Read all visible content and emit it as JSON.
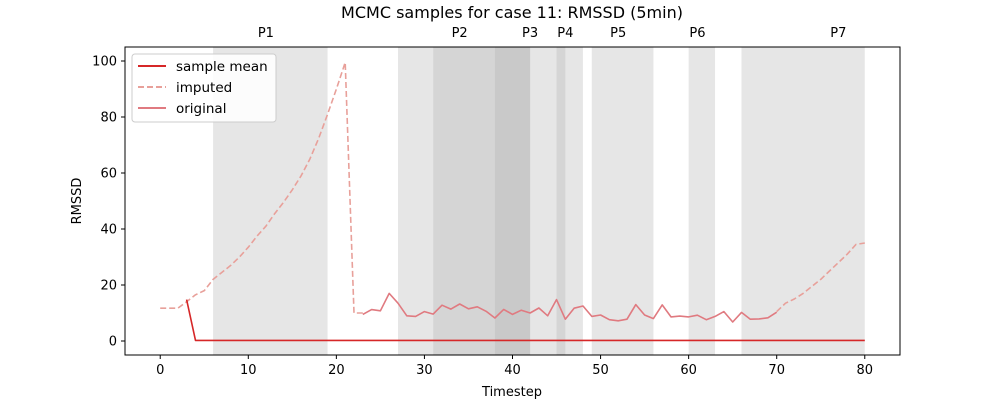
{
  "chart_data": {
    "type": "line",
    "title": "MCMC samples for case 11: RMSSD (5min)",
    "xlabel": "Timestep",
    "ylabel": "RMSSD",
    "xlim": [
      -4,
      84
    ],
    "ylim": [
      -5,
      105
    ],
    "xticks": [
      0,
      10,
      20,
      30,
      40,
      50,
      60,
      70,
      80
    ],
    "yticks": [
      0,
      20,
      40,
      60,
      80,
      100
    ],
    "legend": {
      "placement": "top-left"
    },
    "colors": {
      "sample_mean": "#d62728",
      "imputed": "#e8a09a",
      "original": "#e07a80",
      "band": "#b0b0b0"
    },
    "series": [
      {
        "name": "sample mean",
        "style": "solid",
        "x": [
          3,
          4,
          80
        ],
        "y": [
          14.8,
          0.2,
          0.2
        ]
      },
      {
        "name": "imputed",
        "style": "dashed",
        "x": [
          0,
          1,
          2,
          3,
          4,
          5,
          6,
          7,
          8,
          9,
          10,
          11,
          12,
          13,
          14,
          15,
          16,
          17,
          18,
          19,
          20,
          21,
          22,
          23
        ],
        "y": [
          11.7,
          11.7,
          11.7,
          14,
          16.5,
          18,
          22,
          24.5,
          27,
          30,
          33.5,
          37.5,
          41,
          45.5,
          49.5,
          54,
          59,
          65,
          72.5,
          81,
          90,
          99.5,
          10,
          10
        ]
      },
      {
        "name": "imputed-tail",
        "style": "dashed",
        "x": [
          70,
          71,
          72,
          73,
          74,
          75,
          76,
          77,
          78,
          79,
          80
        ],
        "y": [
          10.5,
          13.5,
          15,
          17,
          19.5,
          22,
          25,
          28,
          31,
          34.5,
          35
        ]
      },
      {
        "name": "original",
        "style": "solid",
        "x": [
          23,
          24,
          25,
          26,
          27,
          28,
          29,
          30,
          31,
          32,
          33,
          34,
          35,
          36,
          37,
          38,
          39,
          40,
          41,
          42,
          43,
          44,
          45,
          46,
          47,
          48,
          49,
          50,
          51,
          52,
          53,
          54,
          55,
          56,
          57,
          58,
          59,
          60,
          61,
          62,
          63,
          64,
          65,
          66,
          67,
          68,
          69,
          70
        ],
        "y": [
          9.5,
          11.2,
          10.8,
          17,
          13.5,
          9,
          8.8,
          10.5,
          9.6,
          12.8,
          11.4,
          13.2,
          11.5,
          12.2,
          10.6,
          8.2,
          11.3,
          9.5,
          11,
          10,
          11.8,
          9,
          14.8,
          7.8,
          11.7,
          12.5,
          8.8,
          9.3,
          7.6,
          7.2,
          7.8,
          13,
          9.3,
          8,
          12.9,
          8.6,
          8.9,
          8.6,
          9.2,
          7.6,
          8.8,
          10.5,
          6.8,
          10.2,
          7.8,
          7.9,
          8.3,
          10.3
        ]
      }
    ],
    "bands": [
      {
        "x0": 6,
        "x1": 19
      },
      {
        "x0": 27,
        "x1": 42
      },
      {
        "x0": 38,
        "x1": 42
      },
      {
        "x0": 31,
        "x1": 45
      },
      {
        "x0": 45,
        "x1": 46
      },
      {
        "x0": 45,
        "x1": 48
      },
      {
        "x0": 49,
        "x1": 56
      },
      {
        "x0": 60,
        "x1": 63
      },
      {
        "x0": 66,
        "x1": 74
      },
      {
        "x0": 74,
        "x1": 80
      }
    ],
    "top_labels": [
      {
        "text": "P1",
        "x": 12
      },
      {
        "text": "P2",
        "x": 34
      },
      {
        "text": "P3",
        "x": 42
      },
      {
        "text": "P4",
        "x": 46
      },
      {
        "text": "P5",
        "x": 52
      },
      {
        "text": "P6",
        "x": 61
      },
      {
        "text": "P7",
        "x": 77
      }
    ]
  }
}
